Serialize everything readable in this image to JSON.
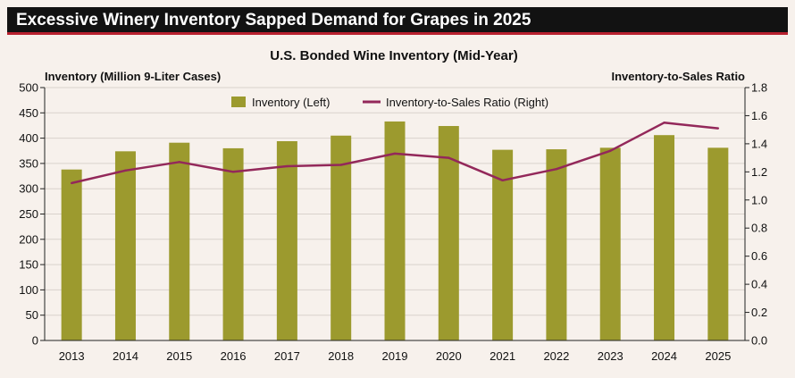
{
  "banner": {
    "title": "Excessive Winery Inventory Sapped Demand for Grapes in 2025"
  },
  "colors": {
    "bar": "#9c9a2e",
    "line": "#93285a",
    "banner_bg": "#121212",
    "banner_rule": "#b8212f",
    "background": "#f7f1ec"
  },
  "chart_data": {
    "type": "bar",
    "title": "U.S. Bonded Wine Inventory (Mid-Year)",
    "ylabel_left": "Inventory (Million 9-Liter Cases)",
    "ylabel_right": "Inventory-to-Sales Ratio",
    "categories": [
      "2013",
      "2014",
      "2015",
      "2016",
      "2017",
      "2018",
      "2019",
      "2020",
      "2021",
      "2022",
      "2023",
      "2024",
      "2025"
    ],
    "ylim_left": [
      0,
      500
    ],
    "ylim_right": [
      0,
      1.8
    ],
    "yticks_left": [
      "0",
      "50",
      "100",
      "150",
      "200",
      "250",
      "300",
      "350",
      "400",
      "450",
      "500"
    ],
    "yticks_right": [
      "0.0",
      "0.2",
      "0.4",
      "0.6",
      "0.8",
      "1.0",
      "1.2",
      "1.4",
      "1.6",
      "1.8"
    ],
    "grid": true,
    "legend_position": "top-center",
    "series": [
      {
        "name": "Inventory (Left)",
        "type": "bar",
        "axis": "left",
        "values": [
          338,
          374,
          391,
          380,
          394,
          405,
          433,
          424,
          377,
          378,
          381,
          406,
          381
        ]
      },
      {
        "name": "Inventory-to-Sales Ratio (Right)",
        "type": "line",
        "axis": "right",
        "values": [
          1.12,
          1.21,
          1.27,
          1.2,
          1.24,
          1.25,
          1.33,
          1.3,
          1.14,
          1.22,
          1.35,
          1.55,
          1.51
        ]
      }
    ]
  }
}
